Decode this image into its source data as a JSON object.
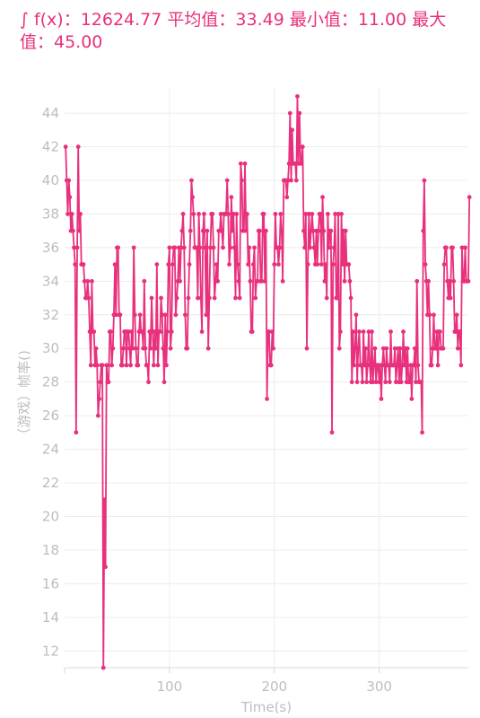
{
  "header": {
    "text": "∫ f(x)：12624.77  平均值：33.49  最小值：11.00  最大值：45.00"
  },
  "chart_data": {
    "type": "line",
    "xlabel": "Time(s)",
    "ylabel": "（游戏）帧率()",
    "xlim": [
      0,
      385
    ],
    "ylim": [
      11,
      45.5
    ],
    "x_ticks": [
      100,
      200,
      300
    ],
    "y_ticks": [
      12,
      14,
      16,
      18,
      20,
      22,
      24,
      26,
      28,
      30,
      32,
      34,
      36,
      38,
      40,
      42,
      44
    ],
    "grid": true,
    "colors": {
      "line": "#e8307c",
      "grid": "#ececec",
      "axis": "#d8d8d8",
      "text": "#bdbdbd"
    },
    "series": [
      {
        "x_start": 1,
        "x_step": 1,
        "y": [
          42,
          40,
          38,
          40,
          39,
          37,
          38,
          37,
          36,
          35,
          25,
          36,
          42,
          37,
          38,
          35,
          35,
          35,
          34,
          33,
          33,
          34,
          33,
          31,
          29,
          34,
          31,
          31,
          29,
          30,
          29,
          26,
          27,
          28,
          29,
          29,
          11,
          21,
          17,
          29,
          28,
          28,
          31,
          31,
          29,
          30,
          32,
          35,
          32,
          36,
          36,
          32,
          32,
          29,
          29,
          30,
          31,
          31,
          29,
          31,
          31,
          30,
          29,
          31,
          30,
          36,
          32,
          30,
          29,
          29,
          31,
          32,
          31,
          31,
          30,
          34,
          30,
          29,
          29,
          28,
          31,
          30,
          33,
          31,
          29,
          31,
          30,
          35,
          29,
          31,
          31,
          33,
          32,
          30,
          28,
          32,
          29,
          31,
          35,
          36,
          30,
          31,
          35,
          36,
          36,
          32,
          33,
          34,
          36,
          34,
          36,
          37,
          38,
          36,
          32,
          30,
          30,
          33,
          35,
          37,
          40,
          39,
          38,
          36,
          36,
          36,
          33,
          38,
          36,
          33,
          31,
          37,
          38,
          36,
          32,
          37,
          30,
          33,
          36,
          38,
          38,
          36,
          33,
          34,
          35,
          34,
          37,
          37,
          38,
          37,
          36,
          38,
          38,
          38,
          40,
          38,
          35,
          36,
          39,
          37,
          38,
          36,
          33,
          38,
          35,
          34,
          33,
          41,
          40,
          37,
          37,
          41,
          37,
          38,
          35,
          36,
          34,
          31,
          31,
          35,
          36,
          33,
          34,
          34,
          37,
          37,
          34,
          34,
          38,
          38,
          34,
          37,
          27,
          31,
          31,
          29,
          29,
          31,
          30,
          35,
          38,
          36,
          36,
          35,
          36,
          38,
          37,
          34,
          40,
          40,
          40,
          39,
          40,
          41,
          44,
          40,
          43,
          41,
          41,
          41,
          40,
          45,
          41,
          44,
          41,
          41,
          42,
          37,
          36,
          38,
          30,
          35,
          38,
          36,
          37,
          38,
          37,
          36,
          35,
          37,
          35,
          37,
          38,
          38,
          35,
          39,
          37,
          34,
          35,
          33,
          38,
          36,
          37,
          37,
          25,
          35,
          36,
          38,
          33,
          33,
          38,
          30,
          31,
          38,
          35,
          37,
          34,
          37,
          35,
          35,
          35,
          34,
          33,
          28,
          31,
          29,
          30,
          32,
          28,
          30,
          31,
          29,
          29,
          28,
          31,
          29,
          30,
          28,
          29,
          31,
          29,
          28,
          31,
          28,
          29,
          30,
          28,
          29,
          29,
          28,
          29,
          27,
          29,
          30,
          29,
          28,
          30,
          29,
          29,
          28,
          31,
          29,
          29,
          29,
          30,
          28,
          29,
          30,
          28,
          30,
          28,
          29,
          31,
          29,
          30,
          28,
          30,
          28,
          28,
          29,
          27,
          29,
          29,
          30,
          28,
          34,
          29,
          28,
          28,
          28,
          25,
          37,
          40,
          35,
          34,
          32,
          34,
          32,
          29,
          29,
          30,
          32,
          30,
          30,
          31,
          29,
          31,
          31,
          30,
          30,
          30,
          35,
          36,
          36,
          34,
          33,
          34,
          33,
          36,
          36,
          34,
          31,
          31,
          32,
          30,
          31,
          31,
          29,
          36,
          34,
          34,
          36,
          34,
          34,
          34,
          39
        ]
      }
    ]
  }
}
